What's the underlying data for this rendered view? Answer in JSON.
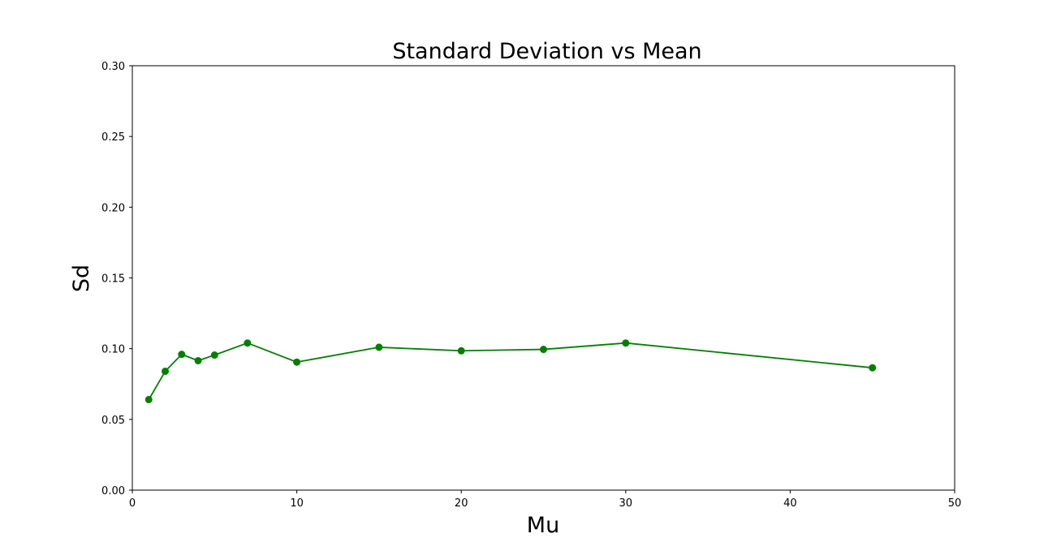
{
  "chart_data": {
    "type": "line",
    "title": "Standard Deviation vs Mean",
    "xlabel": "Mu",
    "ylabel": "Sd",
    "xlim": [
      0,
      50
    ],
    "ylim": [
      0,
      0.3
    ],
    "xticks": [
      0,
      10,
      20,
      30,
      40,
      50
    ],
    "xtick_labels": [
      "0",
      "10",
      "20",
      "30",
      "40",
      "50"
    ],
    "yticks": [
      0,
      0.05,
      0.1,
      0.15,
      0.2,
      0.25,
      0.3
    ],
    "ytick_labels": [
      "0.00",
      "0.05",
      "0.10",
      "0.15",
      "0.20",
      "0.25",
      "0.30"
    ],
    "grid": false,
    "series": [
      {
        "name": "Sd",
        "color": "#008000",
        "marker": "circle",
        "x": [
          1,
          2,
          3,
          4,
          5,
          7,
          10,
          15,
          20,
          25,
          30,
          45
        ],
        "y": [
          0.064,
          0.084,
          0.096,
          0.0915,
          0.0955,
          0.104,
          0.0905,
          0.101,
          0.0985,
          0.0995,
          0.104,
          0.0865
        ]
      }
    ]
  }
}
